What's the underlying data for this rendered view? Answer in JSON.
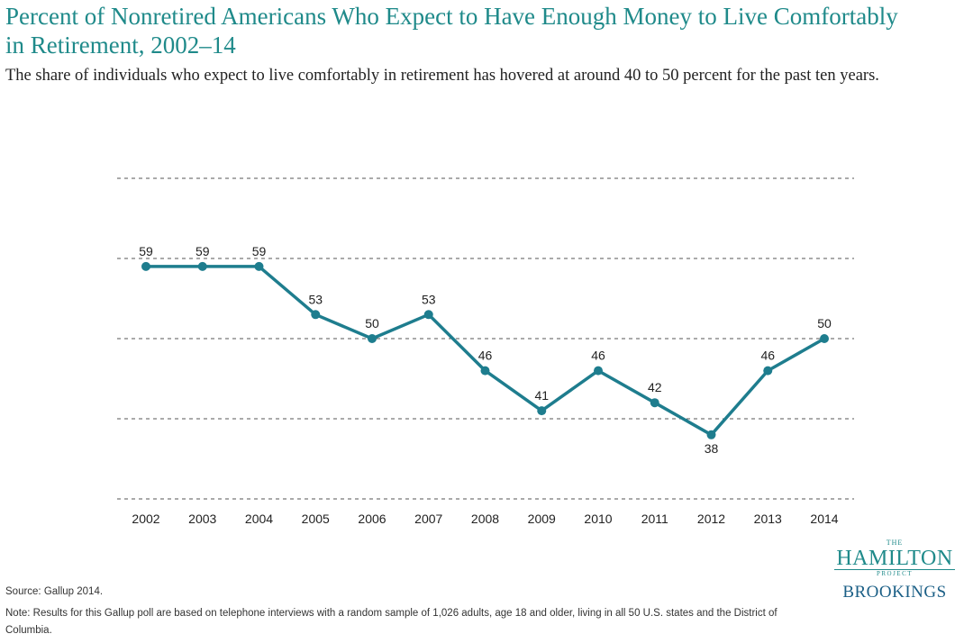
{
  "header": {
    "title": "Percent of Nonretired Americans Who Expect to Have Enough Money to Live Comfortably in Retirement, 2002–14",
    "subtitle": "The share of individuals who expect to live comfortably in retirement has hovered at around 40 to 50 percent for the past ten years."
  },
  "chart_data": {
    "type": "line",
    "title": "Percent of Nonretired Americans Who Expect to Have Enough Money to Live Comfortably in Retirement, 2002–14",
    "categories": [
      "2002",
      "2003",
      "2004",
      "2005",
      "2006",
      "2007",
      "2008",
      "2009",
      "2010",
      "2011",
      "2012",
      "2013",
      "2014"
    ],
    "series": [
      {
        "values": [
          59,
          59,
          59,
          53,
          50,
          53,
          46,
          41,
          46,
          42,
          38,
          46,
          50
        ]
      }
    ],
    "ylim": [
      30,
      70
    ],
    "gridlines": [
      30,
      40,
      50,
      60,
      70
    ],
    "grid": true,
    "legend": "none",
    "color": "#1e7d8e",
    "data_labels": true
  },
  "footer": {
    "source": "Source: Gallup 2014.",
    "note": "Note: Results for this Gallup poll are based on telephone interviews with a random sample of 1,026 adults, age 18 and older, living in all 50 U.S. states and the District of Columbia."
  },
  "logo": {
    "the": "THE",
    "hamilton": "HAMILTON",
    "project": "PROJECT",
    "brookings": "BROOKINGS"
  }
}
